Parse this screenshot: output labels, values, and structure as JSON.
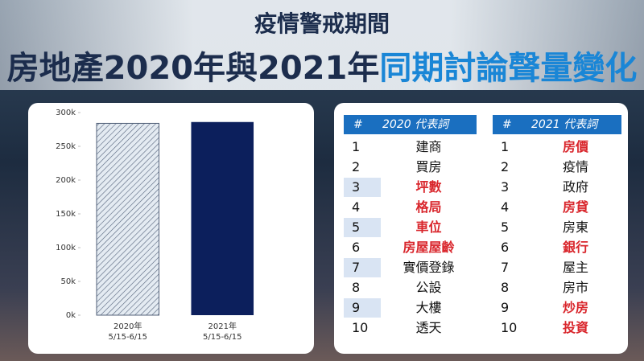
{
  "header": {
    "line1": "疫情警戒期間",
    "line2a": "房地產2020年與2021年",
    "line2b": "同期討論聲量變化"
  },
  "chart_data": {
    "type": "bar",
    "categories": [
      [
        "2020年",
        "5/15-6/15"
      ],
      [
        "2021年",
        "5/15-6/15"
      ]
    ],
    "values": [
      284000,
      286000
    ],
    "colors": [
      "#dfe7f0",
      "#0c1f5c"
    ],
    "hatch": [
      true,
      false
    ],
    "ylim": [
      0,
      300000
    ],
    "yticks": [
      {
        "value": 0,
        "label": "0k"
      },
      {
        "value": 50000,
        "label": "50k"
      },
      {
        "value": 100000,
        "label": "100k"
      },
      {
        "value": 150000,
        "label": "150k"
      },
      {
        "value": 200000,
        "label": "200k"
      },
      {
        "value": 250000,
        "label": "250k"
      },
      {
        "value": 300000,
        "label": "300k"
      }
    ]
  },
  "table": {
    "columns": [
      "#",
      "2020 代表詞",
      "#",
      "2021 代表詞"
    ],
    "rows": [
      [
        {
          "rank": 1,
          "word": "建商",
          "red": false
        },
        {
          "rank": 1,
          "word": "房價",
          "red": true
        }
      ],
      [
        {
          "rank": 2,
          "word": "買房",
          "red": false
        },
        {
          "rank": 2,
          "word": "疫情",
          "red": false
        }
      ],
      [
        {
          "rank": 3,
          "word": "坪數",
          "red": true
        },
        {
          "rank": 3,
          "word": "政府",
          "red": false
        }
      ],
      [
        {
          "rank": 4,
          "word": "格局",
          "red": true
        },
        {
          "rank": 4,
          "word": "房貸",
          "red": true
        }
      ],
      [
        {
          "rank": 5,
          "word": "車位",
          "red": true
        },
        {
          "rank": 5,
          "word": "房東",
          "red": false
        }
      ],
      [
        {
          "rank": 6,
          "word": "房屋屋齡",
          "red": true
        },
        {
          "rank": 6,
          "word": "銀行",
          "red": true
        }
      ],
      [
        {
          "rank": 7,
          "word": "實價登錄",
          "red": false
        },
        {
          "rank": 7,
          "word": "屋主",
          "red": false
        }
      ],
      [
        {
          "rank": 8,
          "word": "公設",
          "red": false
        },
        {
          "rank": 8,
          "word": "房市",
          "red": false
        }
      ],
      [
        {
          "rank": 9,
          "word": "大樓",
          "red": false
        },
        {
          "rank": 9,
          "word": "炒房",
          "red": true
        }
      ],
      [
        {
          "rank": 10,
          "word": "透天",
          "red": false
        },
        {
          "rank": 10,
          "word": "投資",
          "red": true
        }
      ]
    ]
  }
}
